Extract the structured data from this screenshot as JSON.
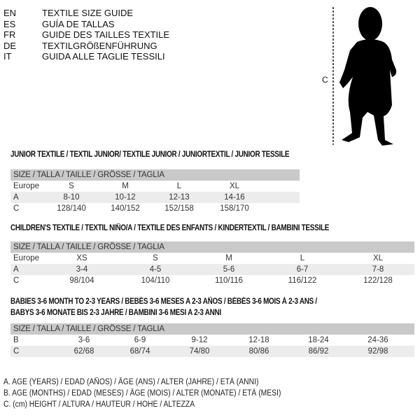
{
  "languages": [
    {
      "code": "EN",
      "text": "TEXTILE SIZE GUIDE"
    },
    {
      "code": "ES",
      "text": "GUÍA DE TALLAS"
    },
    {
      "code": "FR",
      "text": "GUIDE DES TAILLES TEXTILE"
    },
    {
      "code": "DE",
      "text": "TEXTILGRÖßENFÜHRUNG"
    },
    {
      "code": "IT",
      "text": "GUIDA ALLE TAGLIE TESSILI"
    }
  ],
  "figure": {
    "measure_label": "C"
  },
  "junior": {
    "title": "JUNIOR TEXTILE / TEXTIL JUNIOR/ TEXTILE JUNIOR / JUNIORTEXTIL / JUNIOR TESSILE",
    "header": "SIZE / TALLA / TAILLE / GRÖSSE / TAGLIA",
    "rows": [
      {
        "label": "Europe",
        "cells": [
          "S",
          "M",
          "L",
          "XL"
        ]
      },
      {
        "label": "A",
        "cells": [
          "8-10",
          "10-12",
          "12-13",
          "14-16"
        ]
      },
      {
        "label": "C",
        "cells": [
          "128/140",
          "140/152",
          "152/158",
          "158/170"
        ]
      }
    ]
  },
  "children": {
    "title": "CHILDREN'S TEXTILE / TEXTIL NIÑO/A / TEXTILE DES ENFANTS / KINDERTEXTIL / BAMBINI TESSILE",
    "header": "SIZE / TALLA / TAILLE / GRÖSSE / TAGLIA",
    "rows": [
      {
        "label": "Europe",
        "cells": [
          "XS",
          "S",
          "M",
          "L",
          "XL"
        ]
      },
      {
        "label": "A",
        "cells": [
          "3-4",
          "4-5",
          "5-6",
          "6-7",
          "7-8"
        ]
      },
      {
        "label": "C",
        "cells": [
          "98/104",
          "104/110",
          "110/116",
          "116/122",
          "122/128"
        ]
      }
    ]
  },
  "babies": {
    "title_line1": "BABIES 3-6 MONTH TO 2-3 YEARS / BEBÉS 3-6 MESES A 2-3 AÑOS / BÉBÉS 3-6 MOIS À 2-3 ANS /",
    "title_line2": "BABYS 3-6 MONATE BIS 2-3 JAHRE / BAMBINI 3-6 MESI A 2-3 ANNI",
    "header": "SIZE / TALLA / TAILLE / GRÖSSE / TAGLIA",
    "rows": [
      {
        "label": "B",
        "cells": [
          "3-6",
          "6-9",
          "9-12",
          "12-18",
          "18-24",
          "24-36"
        ]
      },
      {
        "label": "C",
        "cells": [
          "62/68",
          "68/74",
          "74/80",
          "80/86",
          "86/92",
          "92/98"
        ]
      }
    ]
  },
  "legend": [
    "A. AGE (YEARS) / EDAD (AÑOS) / ÂGE (ANS) / ALTER (JAHRE) / ETÀ (ANNI)",
    "B. AGE (MONTHS) / EDAD (MESES) / ÂGE (MOIS) / ALTER (MONATE) / ETÀ (MESI)",
    "C. (cm) HEIGHT / ALTURA / HAUTEUR / HÖHE / ALTEZZA"
  ]
}
